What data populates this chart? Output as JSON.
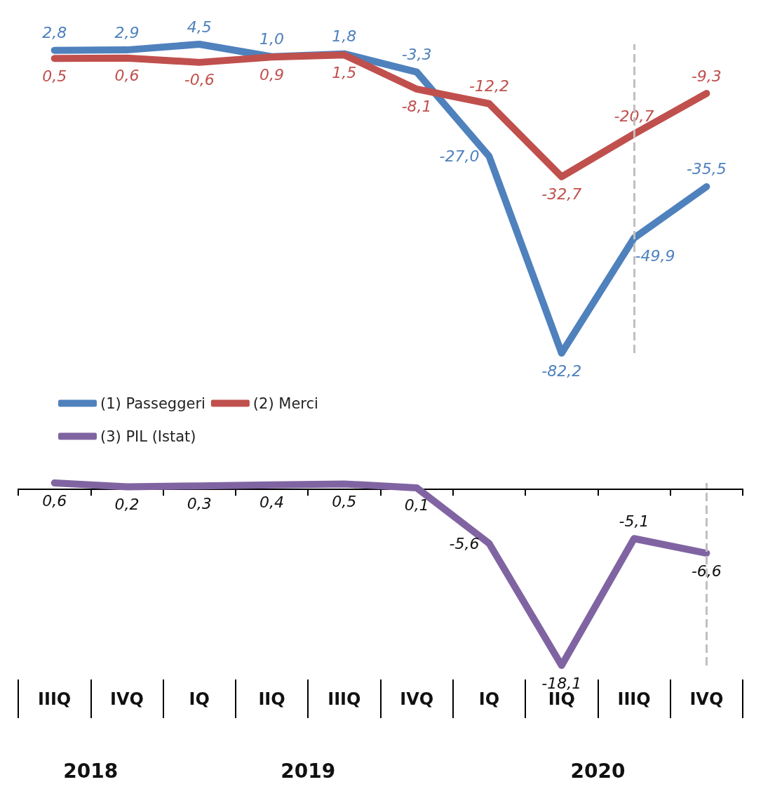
{
  "chart_data": [
    {
      "type": "line",
      "categories": [
        null,
        null,
        null,
        null,
        null,
        null,
        null,
        null,
        null,
        null
      ],
      "tick_labels": false,
      "legend": "bottom",
      "marker": "none",
      "line_style": "solid",
      "series": [
        {
          "name": "(1) Passeggeri",
          "color": "#4f81bd",
          "values": [
            2.8,
            2.9,
            4.5,
            1.0,
            1.8,
            -3.3,
            -27.0,
            -82.2,
            -49.9,
            -35.5
          ],
          "value_labels": [
            "2,8",
            "2,9",
            "4,5",
            "1,0",
            "1,8",
            "-3,3",
            "-27,0",
            "-82,2",
            "-49,9",
            "-35,5"
          ]
        },
        {
          "name": "(2) Merci",
          "color": "#c0504d",
          "values": [
            0.5,
            0.6,
            -0.6,
            0.9,
            1.5,
            -8.1,
            -12.2,
            -32.7,
            -20.7,
            -9.3
          ],
          "value_labels": [
            "0,5",
            "0,6",
            "-0,6",
            "0,9",
            "1,5",
            "-8,1",
            "-12,2",
            "-32,7",
            "-20,7",
            "-9,3"
          ]
        }
      ]
    },
    {
      "type": "line",
      "categories": [
        "IIIQ",
        "IVQ",
        "IQ",
        "IIQ",
        "IIIQ",
        "IVQ",
        "IQ",
        "IIQ",
        "IIIQ",
        "IVQ"
      ],
      "tick_labels": "x",
      "legend": "top",
      "marker": "none",
      "line_style": "solid",
      "grid": "x",
      "annotations": [
        "2018",
        "2019",
        "2020"
      ],
      "series": [
        {
          "name": "(3) PIL (Istat)",
          "color": "#8064a2",
          "values": [
            0.6,
            0.2,
            0.3,
            0.4,
            0.5,
            0.1,
            -5.6,
            -18.1,
            -5.1,
            -6.6
          ],
          "value_labels": [
            "0,6",
            "0,2",
            "0,3",
            "0,4",
            "0,5",
            "0,1",
            "-5,6",
            "-18,1",
            "-5,1",
            "-6,6"
          ]
        }
      ]
    }
  ]
}
